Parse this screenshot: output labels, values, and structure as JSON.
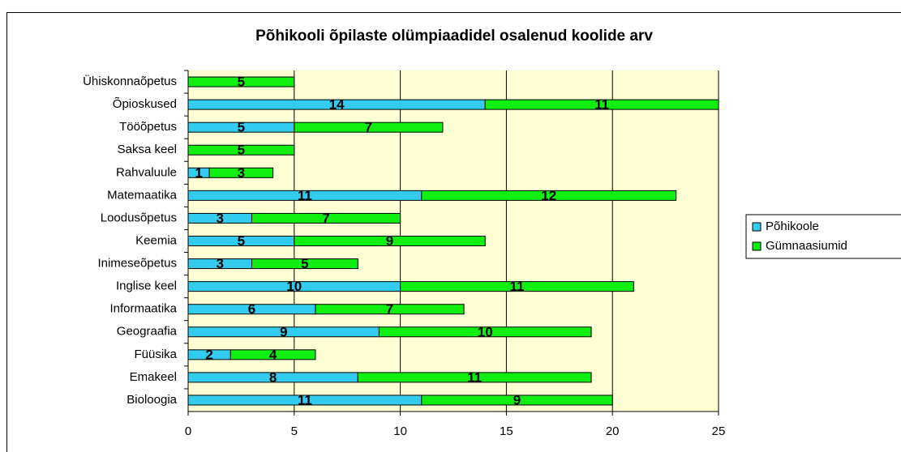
{
  "chart_data": {
    "type": "bar",
    "orientation": "horizontal",
    "stacked": true,
    "title": "Põhikooli õpilaste olümpiaadidel osalenud koolide arv",
    "categories": [
      "Ühiskonnaõpetus",
      "Õpioskused",
      "Tööõpetus",
      "Saksa keel",
      "Rahvaluule",
      "Matemaatika",
      "Loodusõpetus",
      "Keemia",
      "Inimeseõpetus",
      "Inglise keel",
      "Informaatika",
      "Geograafia",
      "Füüsika",
      "Emakeel",
      "Bioloogia"
    ],
    "series": [
      {
        "name": "Põhikoole",
        "color": "#33ccee",
        "values": [
          null,
          14,
          5,
          null,
          1,
          11,
          3,
          5,
          3,
          10,
          6,
          9,
          2,
          8,
          11
        ]
      },
      {
        "name": "Gümnaasiumid",
        "color": "#11ee11",
        "values": [
          5,
          11,
          7,
          5,
          3,
          12,
          7,
          9,
          5,
          11,
          7,
          10,
          4,
          11,
          9
        ]
      }
    ],
    "xlim": [
      0,
      25
    ],
    "xticks": [
      0,
      5,
      10,
      15,
      20,
      25
    ],
    "grid": true,
    "legend": "right"
  }
}
